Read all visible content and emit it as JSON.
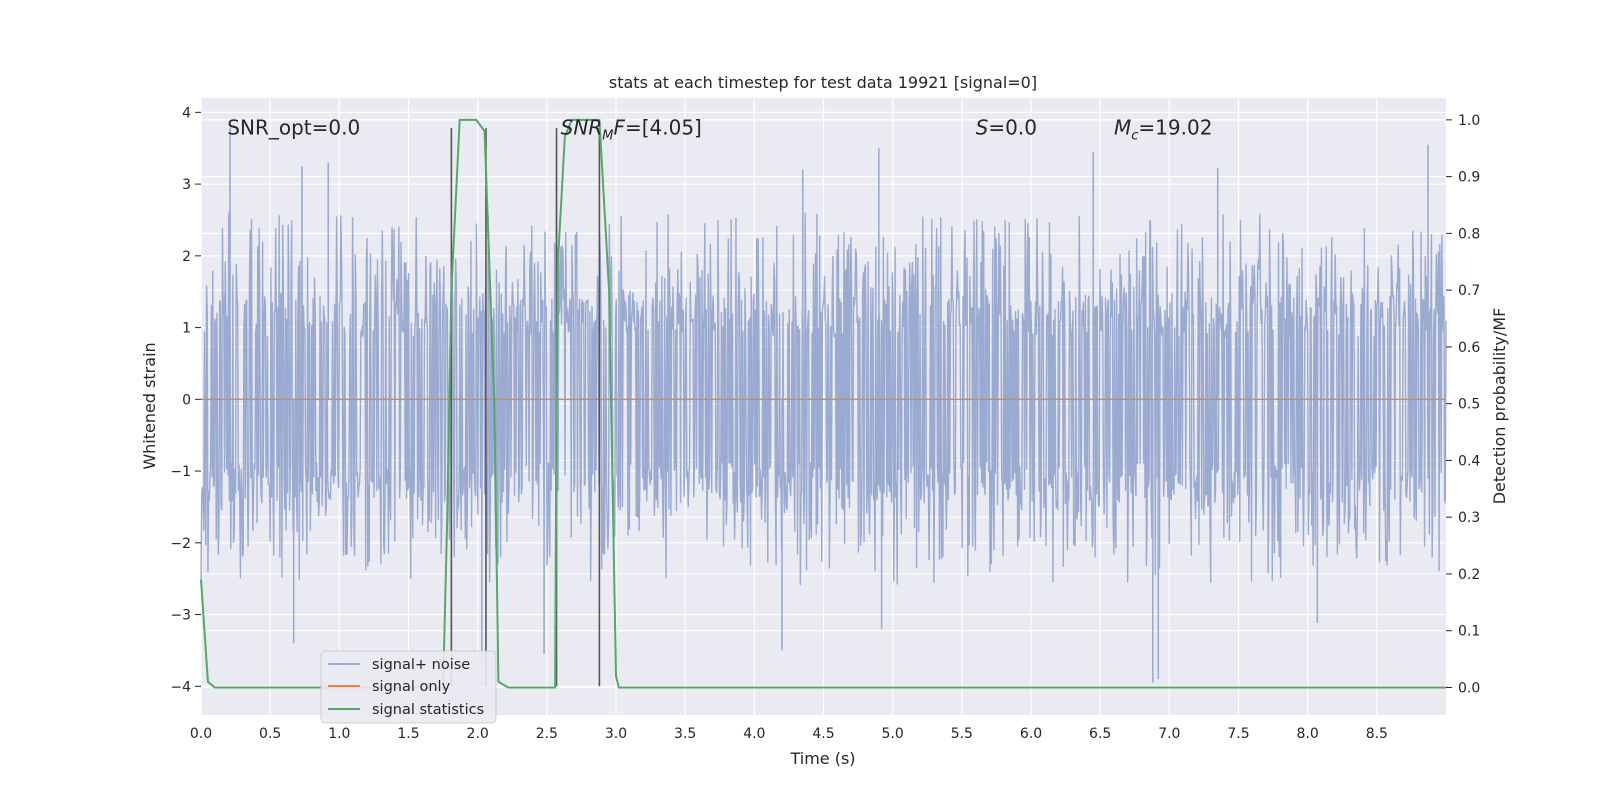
{
  "chart_data": {
    "type": "line",
    "title": "stats at each timestep for test data 19921 [signal=0]",
    "xlabel": "Time (s)",
    "ylabel": "Whitened strain",
    "y2label": "Detection probability/MF",
    "xlim": [
      0,
      9.0
    ],
    "ylim": [
      -4.4,
      4.2
    ],
    "y2lim": [
      -0.0485,
      1.0385
    ],
    "x_ticks": [
      "0.0",
      "0.5",
      "1.0",
      "1.5",
      "2.0",
      "2.5",
      "3.0",
      "3.5",
      "4.0",
      "4.5",
      "5.0",
      "5.5",
      "6.0",
      "6.5",
      "7.0",
      "7.5",
      "8.0",
      "8.5"
    ],
    "y_ticks": [
      "−4",
      "−3",
      "−2",
      "−1",
      "0",
      "1",
      "2",
      "3",
      "4"
    ],
    "y2_ticks": [
      "0.0",
      "0.1",
      "0.2",
      "0.3",
      "0.4",
      "0.5",
      "0.6",
      "0.7",
      "0.8",
      "0.9",
      "1.0"
    ],
    "grid": true,
    "legend_position": "lower-left",
    "annotations": [
      {
        "id": "snr-opt",
        "text": "SNR_opt=0.0",
        "x": 0.19,
        "y": 3.8
      },
      {
        "id": "snr-mf",
        "html": "<tspan font-style='italic'>SNR</tspan><tspan font-style='italic' font-size='13' dy='5'>M</tspan><tspan font-style='italic' dy='-5'>F</tspan>=[4.05]",
        "text": "SNR_MF=[4.05]",
        "x": 2.6,
        "y": 3.8
      },
      {
        "id": "s-value",
        "html": "<tspan font-style='italic'>S</tspan>=0.0",
        "text": "S=0.0",
        "x": 5.6,
        "y": 3.8
      },
      {
        "id": "chirp-mass",
        "html": "<tspan font-style='italic'>M</tspan><tspan font-style='italic' font-size='13' dy='5'>c</tspan><tspan dy='-5'>=19.02</tspan>",
        "text": "Mc=19.02",
        "x": 6.6,
        "y": 3.8
      }
    ],
    "vertical_lines": [
      1.81,
      2.06,
      2.57,
      2.88
    ],
    "vertical_line_range": [
      -4.0,
      3.78
    ],
    "series": [
      {
        "name": "signal+ noise",
        "color": "#9aaad0",
        "kind": "noise",
        "sample_count": 1800,
        "band": 1.45,
        "tail_max": 2.6,
        "peaks": [
          {
            "x": 0.21,
            "y": 3.78
          },
          {
            "x": 0.73,
            "y": 3.25
          },
          {
            "x": 0.92,
            "y": 3.3
          },
          {
            "x": 2.57,
            "y": 3.45
          },
          {
            "x": 4.35,
            "y": 3.2
          },
          {
            "x": 4.9,
            "y": 3.5
          },
          {
            "x": 6.45,
            "y": 3.45
          },
          {
            "x": 7.35,
            "y": 3.22
          },
          {
            "x": 8.87,
            "y": 3.55
          },
          {
            "x": 0.67,
            "y": -3.4
          },
          {
            "x": 2.48,
            "y": -3.55
          },
          {
            "x": 4.2,
            "y": -3.5
          },
          {
            "x": 6.88,
            "y": -3.95
          },
          {
            "x": 6.92,
            "y": -3.9
          },
          {
            "x": 8.07,
            "y": -3.12
          },
          {
            "x": 2.03,
            "y": -3.7
          },
          {
            "x": 4.92,
            "y": -3.2
          }
        ]
      },
      {
        "name": "signal only",
        "color": "#dd8452",
        "kind": "constant",
        "y": 0.0
      },
      {
        "name": "signal statistics",
        "color": "#55a868",
        "kind": "probability",
        "points": [
          [
            0.0,
            0.19
          ],
          [
            0.05,
            0.01
          ],
          [
            0.1,
            0.0
          ],
          [
            1.75,
            0.0
          ],
          [
            1.78,
            0.3
          ],
          [
            1.81,
            0.7
          ],
          [
            1.87,
            1.0
          ],
          [
            1.99,
            1.0
          ],
          [
            2.05,
            0.98
          ],
          [
            2.12,
            0.5
          ],
          [
            2.15,
            0.01
          ],
          [
            2.22,
            0.0
          ],
          [
            2.56,
            0.0
          ],
          [
            2.57,
            0.5
          ],
          [
            2.58,
            0.75
          ],
          [
            2.63,
            0.97
          ],
          [
            2.68,
            1.0
          ],
          [
            2.88,
            1.0
          ],
          [
            2.95,
            0.7
          ],
          [
            3.0,
            0.02
          ],
          [
            3.02,
            0.0
          ],
          [
            9.0,
            0.0
          ]
        ]
      }
    ]
  }
}
